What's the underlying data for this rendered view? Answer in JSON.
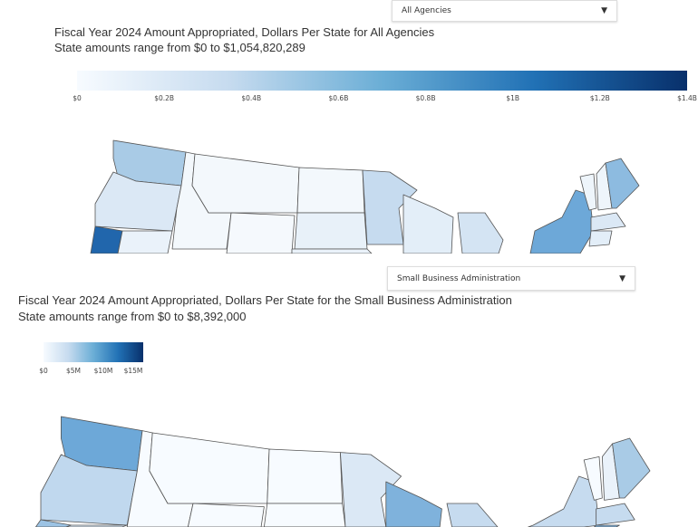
{
  "chart_data": [
    {
      "type": "heatmap",
      "dropdown": {
        "selected": "All Agencies"
      },
      "title": "Fiscal Year 2024 Amount Appropriated, Dollars Per State for All Agencies",
      "subtitle": "State amounts range from $0 to $1,054,820,289",
      "colorscale": {
        "range": [
          0,
          1400000000
        ],
        "colors": [
          "#f7fbff",
          "#c6dbef",
          "#6baed6",
          "#2171b5",
          "#08306b"
        ],
        "tick_labels": [
          "$0",
          "$0.2B",
          "$0.4B",
          "$0.6B",
          "$0.8B",
          "$1B",
          "$1.2B",
          "$1.4B"
        ]
      },
      "state_fills": {
        "WA": "#a9cbe6",
        "OR": "#dbe8f5",
        "CA": "#2166ac",
        "NV": "#eaf2fa",
        "ID": "#f3f8fc",
        "MT": "#f3f8fc",
        "WY": "#f5f9fd",
        "ND": "#f3f8fc",
        "SD": "#e8f1f9",
        "NE": "#eaf2fa",
        "MN": "#c6dbef",
        "WI": "#e3eef8",
        "MI": "#d4e4f3",
        "NY": "#6da8d8",
        "VT": "#eef5fb",
        "NH": "#eef5fb",
        "ME": "#8dbbe0",
        "MA": "#dbe8f5",
        "CT": "#e3eef8"
      }
    },
    {
      "type": "heatmap",
      "dropdown": {
        "selected": "Small Business Administration"
      },
      "title": "Fiscal Year 2024 Amount Appropriated, Dollars Per State for the Small Business Administration",
      "subtitle": "State amounts range from $0 to $8,392,000",
      "colorscale": {
        "range": [
          0,
          17000000
        ],
        "colors": [
          "#f7fbff",
          "#c6dbef",
          "#6baed6",
          "#2171b5",
          "#08306b"
        ],
        "tick_labels": [
          "$0",
          "$5M",
          "$10M",
          "$15M"
        ]
      },
      "state_fills": {
        "WA": "#6da8d8",
        "OR": "#c0d8ee",
        "CA": "#9cc3e4",
        "NV": "#dbe8f5",
        "ID": "#f7fbff",
        "MT": "#f7fbff",
        "WY": "#f7fbff",
        "ND": "#f7fbff",
        "SD": "#f7fbff",
        "NE": "#f7fbff",
        "MN": "#dbe8f5",
        "WI": "#7fb2dc",
        "MI": "#c6dbef",
        "NY": "#c6dbef",
        "VT": "#f7fbff",
        "NH": "#eaf2fa",
        "ME": "#a9cbe6",
        "MA": "#c6dbef",
        "CT": "#7fb2dc"
      }
    }
  ]
}
